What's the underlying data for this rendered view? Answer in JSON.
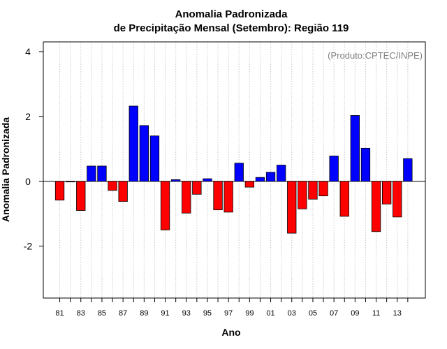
{
  "chart_data": {
    "type": "bar",
    "title_line1": "Anomalia Padronizada",
    "title_line2": "de Precipitação Mensal (Setembro): Região 119",
    "xlabel": "Ano",
    "ylabel": "Anomalia Padronizada",
    "annotation": "(Produto:CPTEC/INPE)",
    "ylim": [
      -3.6,
      4.3
    ],
    "yticks": [
      -2,
      0,
      2,
      4
    ],
    "ytick_labels": [
      "-2",
      "0",
      "2",
      "4"
    ],
    "categories": [
      "81",
      "82",
      "83",
      "84",
      "85",
      "86",
      "87",
      "88",
      "89",
      "90",
      "91",
      "92",
      "93",
      "94",
      "95",
      "96",
      "97",
      "98",
      "99",
      "00",
      "01",
      "02",
      "03",
      "04",
      "05",
      "06",
      "07",
      "08",
      "09",
      "10",
      "11",
      "12",
      "13",
      "14"
    ],
    "xtick_labels": [
      "81",
      "83",
      "85",
      "87",
      "89",
      "91",
      "93",
      "95",
      "97",
      "99",
      "01",
      "03",
      "05",
      "07",
      "09",
      "11",
      "13"
    ],
    "values": [
      -0.58,
      -0.02,
      -0.9,
      0.47,
      0.47,
      -0.28,
      -0.62,
      2.32,
      1.72,
      1.4,
      -1.5,
      0.05,
      -0.98,
      -0.4,
      0.08,
      -0.88,
      -0.95,
      0.56,
      -0.18,
      0.12,
      0.28,
      0.5,
      -1.6,
      -0.85,
      -0.55,
      -0.45,
      0.78,
      -1.08,
      2.03,
      1.02,
      -1.55,
      -0.7,
      -1.1,
      0.7
    ],
    "positive_color": "#0000ff",
    "negative_color": "#ff0000",
    "grid": "vertical dotted",
    "zero_line": true
  }
}
